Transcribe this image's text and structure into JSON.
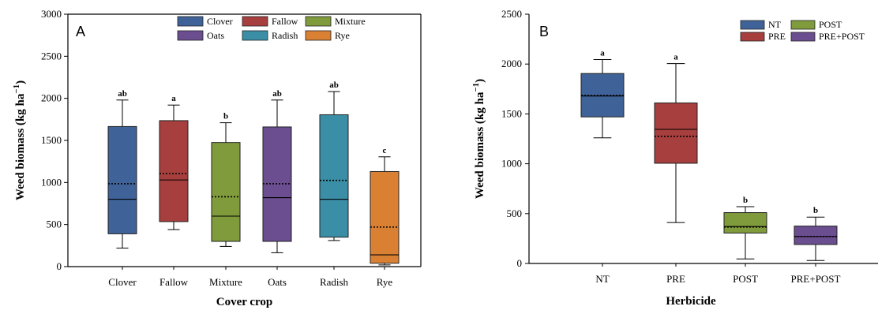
{
  "panels": [
    {
      "id": "A",
      "chart_data": {
        "type": "box",
        "panel_label": "A",
        "xlabel": "Cover crop",
        "ylabel_main": "Weed biomass (kg ha",
        "ylabel_sup": "−1",
        "ylabel_close": ")",
        "ylim": [
          0,
          3000
        ],
        "yticks": [
          0,
          500,
          1000,
          1500,
          2000,
          2500,
          3000
        ],
        "grid": false,
        "legend": {
          "placement": "top",
          "columns": 3,
          "entries": [
            {
              "label": "Clover",
              "color": "#3f6399"
            },
            {
              "label": "Fallow",
              "color": "#a63f3d"
            },
            {
              "label": "Mixture",
              "color": "#7f9b3c"
            },
            {
              "label": "Oats",
              "color": "#6a4e8f"
            },
            {
              "label": "Radish",
              "color": "#3a8ea6"
            },
            {
              "label": "Rye",
              "color": "#da8032"
            }
          ]
        },
        "categories": [
          "Clover",
          "Fallow",
          "Mixture",
          "Oats",
          "Radish",
          "Rye"
        ],
        "boxes": [
          {
            "category": "Clover",
            "whisker_low": 220,
            "q1": 390,
            "median": 800,
            "mean": 985,
            "q3": 1665,
            "whisker_high": 1980,
            "letter": "ab"
          },
          {
            "category": "Fallow",
            "whisker_low": 440,
            "q1": 535,
            "median": 1030,
            "mean": 1105,
            "q3": 1735,
            "whisker_high": 1920,
            "letter": "a"
          },
          {
            "category": "Mixture",
            "whisker_low": 240,
            "q1": 300,
            "median": 600,
            "mean": 830,
            "q3": 1475,
            "whisker_high": 1710,
            "letter": "b"
          },
          {
            "category": "Oats",
            "whisker_low": 165,
            "q1": 300,
            "median": 820,
            "mean": 985,
            "q3": 1660,
            "whisker_high": 1980,
            "letter": "ab"
          },
          {
            "category": "Radish",
            "whisker_low": 310,
            "q1": 350,
            "median": 800,
            "mean": 1025,
            "q3": 1805,
            "whisker_high": 2080,
            "letter": "ab"
          },
          {
            "category": "Rye",
            "whisker_low": 20,
            "q1": 40,
            "median": 140,
            "mean": 470,
            "q3": 1130,
            "whisker_high": 1305,
            "letter": "c"
          }
        ]
      }
    },
    {
      "id": "B",
      "chart_data": {
        "type": "box",
        "panel_label": "B",
        "xlabel": "Herbicide",
        "ylabel_main": "Weed biomass (kg ha",
        "ylabel_sup": "−1",
        "ylabel_close": ")",
        "ylim": [
          0,
          2500
        ],
        "yticks": [
          0,
          500,
          1000,
          1500,
          2000,
          2500
        ],
        "grid": false,
        "legend": {
          "placement": "top-right",
          "columns": 2,
          "entries": [
            {
              "label": "NT",
              "color": "#3f6399"
            },
            {
              "label": "POST",
              "color": "#7f9b3c"
            },
            {
              "label": "PRE",
              "color": "#a63f3d"
            },
            {
              "label": "PRE+POST",
              "color": "#6a4e8f"
            }
          ]
        },
        "categories": [
          "NT",
          "PRE",
          "POST",
          "PRE+POST"
        ],
        "boxes": [
          {
            "category": "NT",
            "whisker_low": 1260,
            "q1": 1470,
            "median": 1680,
            "mean": 1685,
            "q3": 1905,
            "whisker_high": 2045,
            "letter": "a"
          },
          {
            "category": "PRE",
            "whisker_low": 410,
            "q1": 1005,
            "median": 1345,
            "mean": 1275,
            "q3": 1610,
            "whisker_high": 2005,
            "letter": "a"
          },
          {
            "category": "POST",
            "whisker_low": 45,
            "q1": 305,
            "median": 370,
            "mean": 365,
            "q3": 510,
            "whisker_high": 570,
            "letter": "b"
          },
          {
            "category": "PRE+POST",
            "whisker_low": 30,
            "q1": 190,
            "median": 270,
            "mean": 270,
            "q3": 375,
            "whisker_high": 465,
            "letter": "b"
          }
        ]
      }
    }
  ]
}
